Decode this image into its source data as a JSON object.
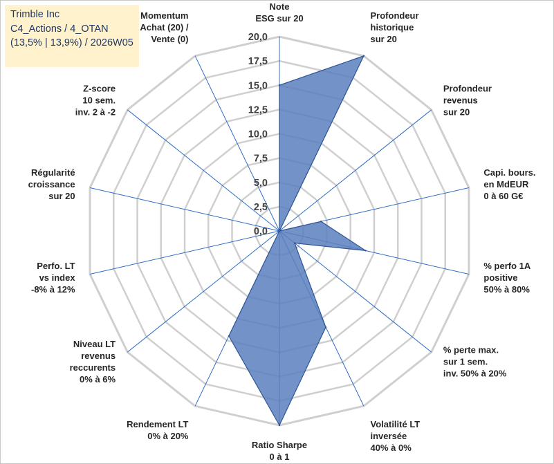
{
  "info_box": {
    "line1": "Trimble Inc",
    "line2": "C4_Actions / 4_OTAN",
    "line3": "(13,5% | 13,9%) / 2026W05"
  },
  "colors": {
    "fill": "#5b7fbd",
    "stroke": "#2e5596",
    "grid": "#cfcfcf",
    "spoke": "#2e6cc7",
    "info_bg": "#fff2cc",
    "info_text": "#1f3864"
  },
  "chart_data": {
    "type": "radar",
    "title": "",
    "rmin": 0,
    "rmax": 20,
    "tick_step": 2.5,
    "tick_labels": [
      "0,0",
      "2,5",
      "5,0",
      "7,5",
      "10,0",
      "12,5",
      "15,0",
      "17,5",
      "20,0"
    ],
    "axes": [
      {
        "label": [
          "Note",
          "ESG sur 20"
        ],
        "value": 15.0
      },
      {
        "label": [
          "Profondeur",
          "historique",
          "sur 20"
        ],
        "value": 20.0
      },
      {
        "label": [
          "Profondeur",
          "revenus",
          "sur 20"
        ],
        "value": 0.0
      },
      {
        "label": [
          "Capi. bours.",
          "en MdEUR",
          "0 à 60 G€"
        ],
        "value": 4.4
      },
      {
        "label": [
          "% perfo 1A",
          "positive",
          "50% à 80%"
        ],
        "value": 9.1
      },
      {
        "label": [
          "% perte max.",
          "sur 1 sem.",
          "inv. 50% à 20%"
        ],
        "value": 2.0
      },
      {
        "label": [
          "Volatilité LT",
          "inversée",
          "40% à 0%"
        ],
        "value": 11.0
      },
      {
        "label": [
          "Ratio Sharpe",
          "0 à 1"
        ],
        "value": 20.0
      },
      {
        "label": [
          "Rendement LT",
          "0% à 20%"
        ],
        "value": 12.0
      },
      {
        "label": [
          "Niveau LT",
          "revenus",
          "reccurents",
          "0% à 6%"
        ],
        "value": 0.0
      },
      {
        "label": [
          "Perfo. LT",
          "vs index",
          "-8% à 12%"
        ],
        "value": 0.0
      },
      {
        "label": [
          "Régularité",
          "croissance",
          "sur 20"
        ],
        "value": 0.0
      },
      {
        "label": [
          "Z-score",
          "10 sem.",
          "inv. 2 à -2"
        ],
        "value": 0.0
      },
      {
        "label": [
          "Momentum",
          "Achat (20) /",
          "Vente (0)"
        ],
        "value": 0.0
      }
    ]
  }
}
